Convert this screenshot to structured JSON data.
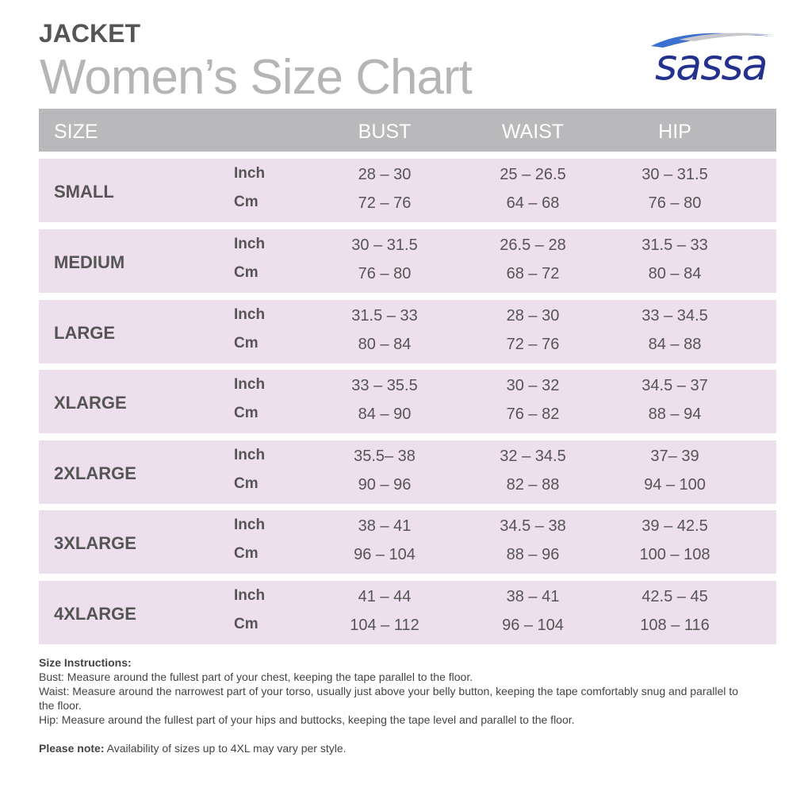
{
  "header": {
    "title": "JACKET",
    "subtitle": "Women’s Size Chart",
    "logo": "sassa"
  },
  "table": {
    "columns": [
      "SIZE",
      "BUST",
      "WAIST",
      "HIP"
    ],
    "rows": [
      {
        "size": "SMALL",
        "measurements": [
          [
            "Inch",
            "28 – 30",
            "25 – 26.5",
            "30 – 31.5"
          ],
          [
            "Cm",
            "72 – 76",
            "64 – 68",
            "76 – 80"
          ]
        ]
      },
      {
        "size": "MEDIUM",
        "measurements": [
          [
            "Inch",
            "30 – 31.5",
            "26.5 – 28",
            "31.5 – 33"
          ],
          [
            "Cm",
            "76 – 80",
            "68 – 72",
            "80 – 84"
          ]
        ]
      },
      {
        "size": "LARGE",
        "measurements": [
          [
            "Inch",
            "31.5 – 33",
            "28 – 30",
            "33 – 34.5"
          ],
          [
            "Cm",
            "80 – 84",
            "72 – 76",
            "84 – 88"
          ]
        ]
      },
      {
        "size": "XLARGE",
        "measurements": [
          [
            "Inch",
            "33 – 35.5",
            "30 – 32",
            "34.5 – 37"
          ],
          [
            "Cm",
            "84 – 90",
            "76 – 82",
            "88 – 94"
          ]
        ]
      },
      {
        "size": "2XLARGE",
        "measurements": [
          [
            "Inch",
            "35.5– 38",
            "32 – 34.5",
            "37– 39"
          ],
          [
            "Cm",
            "90 – 96",
            "82 – 88",
            "94 – 100"
          ]
        ]
      },
      {
        "size": "3XLARGE",
        "measurements": [
          [
            "Inch",
            "38 – 41",
            "34.5 – 38",
            "39 – 42.5"
          ],
          [
            "Cm",
            "96 – 104",
            "88 – 96",
            "100 – 108"
          ]
        ]
      },
      {
        "size": "4XLARGE",
        "measurements": [
          [
            "Inch",
            "41 – 44",
            "38 – 41",
            "42.5 – 45"
          ],
          [
            "Cm",
            "104 – 112",
            "96 – 104",
            "108 – 116"
          ]
        ]
      }
    ]
  },
  "notes": {
    "heading": "Size Instructions:",
    "lines": [
      "Bust: Measure around the fullest part of your chest, keeping the tape parallel to the floor.",
      "Waist: Measure around the narrowest part of your torso, usually just above your belly button, keeping the tape comfortably snug and parallel to the floor.",
      "Hip: Measure around the fullest part of your hips and buttocks, keeping the tape level and parallel to the floor."
    ],
    "note_label": "Please note:",
    "note_text": "Availability of sizes up to 4XL may vary per style."
  }
}
